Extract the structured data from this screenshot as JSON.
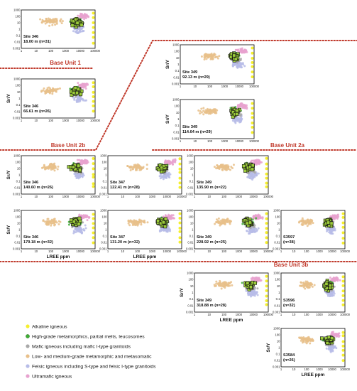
{
  "chart_data": {
    "type": "scatter",
    "xlabel": "LREE ppm",
    "ylabel": "Sr/Y",
    "xscale": "log",
    "yscale": "log",
    "xlim": [
      1,
      100000
    ],
    "ylim": [
      0.001,
      1000
    ],
    "x_ticks": [
      "1",
      "10",
      "100",
      "1000",
      "10000",
      "100000"
    ],
    "y_ticks": [
      "1000",
      "100",
      "10",
      "1",
      "0.1",
      "0.01",
      "0.001"
    ],
    "legend": [
      {
        "label": "Alkaline igneous",
        "color": "#f5ef2e"
      },
      {
        "label": "High-grade metamorphics, partial melts, leucosomes",
        "color": "#3fae35"
      },
      {
        "label": "Mafic igneous including mafic I-type granitoids",
        "color": "#a8a8a8"
      },
      {
        "label": "Low- and medium-grade metamorphic and metasomatic",
        "color": "#e8c08a"
      },
      {
        "label": "Felsic igneous including S-type and felsic I-type granitoids",
        "color": "#b7bce8"
      },
      {
        "label": "Ultramafic igneous",
        "color": "#e7a2cf"
      }
    ],
    "units": [
      {
        "label": "Base Unit 1"
      },
      {
        "label": "Base Unit 2b"
      },
      {
        "label": "Base Unit 2a"
      },
      {
        "label": "Base Unit 3b"
      }
    ],
    "panels": [
      {
        "site": "Site 346",
        "depth": "18.00 m (n=31)",
        "n": 31
      },
      {
        "site": "Site 346",
        "depth": "66.61 m (n=26)",
        "n": 26
      },
      {
        "site": "Site 349",
        "depth": "92.13 m (n=29)",
        "n": 29
      },
      {
        "site": "Site 349",
        "depth": "114.64 m (n=29)",
        "n": 29
      },
      {
        "site": "Site 346",
        "depth": "140.60 m (n=26)",
        "n": 26
      },
      {
        "site": "Site 347",
        "depth": "122.41 m (n=28)",
        "n": 28
      },
      {
        "site": "Site 349",
        "depth": "135.90 m (n=22)",
        "n": 22
      },
      {
        "site": "Site 346",
        "depth": "179.18 m (n=32)",
        "n": 32
      },
      {
        "site": "Site 347",
        "depth": "131.20 m (n=32)",
        "n": 32
      },
      {
        "site": "Site 349",
        "depth": "228.92 m (n=25)",
        "n": 25
      },
      {
        "site": "S3597",
        "depth": "(n=38)",
        "n": 38
      },
      {
        "site": "Site 349",
        "depth": "318.88 m (n=28)",
        "n": 28
      },
      {
        "site": "S3596",
        "depth": "(n=32)",
        "n": 32
      },
      {
        "site": "S3584",
        "depth": "(n=26)",
        "n": 26
      }
    ]
  }
}
